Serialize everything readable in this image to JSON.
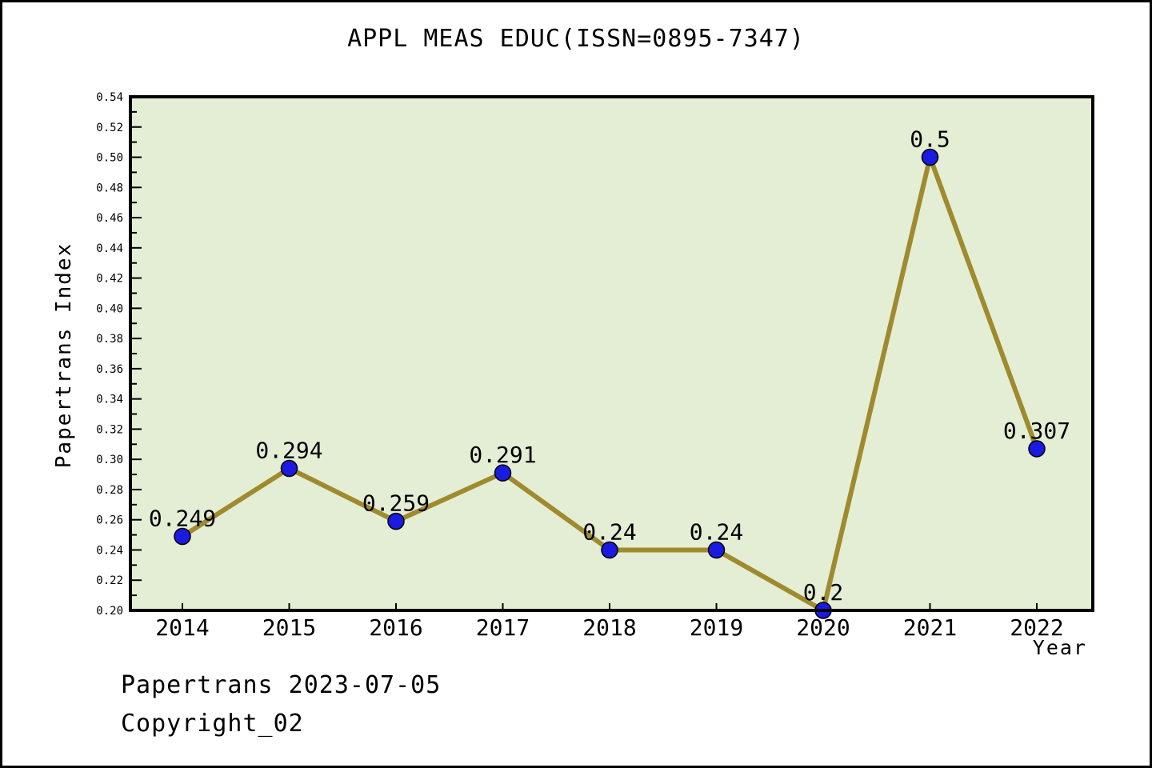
{
  "footer": {
    "line1": "Papertrans 2023-07-05",
    "line2": "Copyright_02"
  },
  "chart_data": {
    "type": "line",
    "title": "APPL MEAS EDUC(ISSN=0895-7347)",
    "categories": [
      "2014",
      "2015",
      "2016",
      "2017",
      "2018",
      "2019",
      "2020",
      "2021",
      "2022"
    ],
    "values": [
      0.249,
      0.294,
      0.259,
      0.291,
      0.24,
      0.24,
      0.2,
      0.5,
      0.307
    ],
    "point_labels": [
      "0.249",
      "0.294",
      "0.259",
      "0.291",
      "0.24",
      "0.24",
      "0.2",
      "0.5",
      "0.307"
    ],
    "xlabel": "Year",
    "ylabel": "Papertrans Index",
    "ylim": [
      0.2,
      0.54
    ],
    "ytick_major_step": 0.02,
    "ytick_minor_step": 0.01,
    "grid": false,
    "legend_position": "none",
    "colors": {
      "line": "#9f8a2f",
      "marker_fill": "#1a1ae0",
      "marker_edge": "#000000",
      "plot_background": "#e4eed5",
      "axis": "#000000",
      "text": "#000000"
    }
  }
}
